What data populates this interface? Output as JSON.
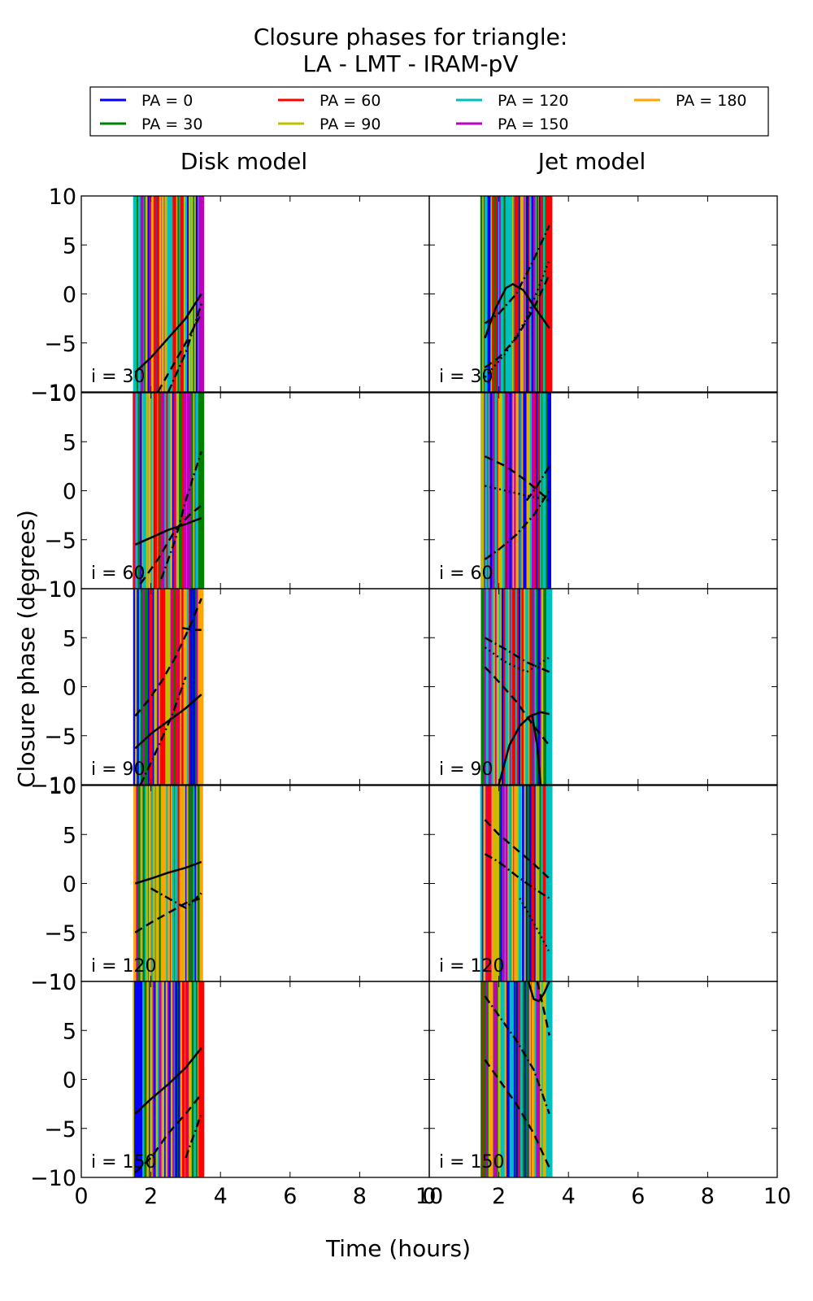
{
  "chart_data": {
    "type": "line",
    "title_line1": "Closure phases for triangle:",
    "title_line2": "LA - LMT - IRAM-pV",
    "xlabel": "Time (hours)",
    "ylabel": "Closure phase (degrees)",
    "xlim": [
      0,
      10
    ],
    "ylim": [
      -10,
      10
    ],
    "xticks": [
      0,
      2,
      4,
      6,
      8,
      10
    ],
    "yticks": [
      -10,
      -5,
      0,
      5,
      10
    ],
    "xticklabels_left": [
      "0",
      "2",
      "4",
      "6",
      "8",
      "10"
    ],
    "xticklabels_right": [
      "0",
      "2",
      "4",
      "6",
      "8",
      "10"
    ],
    "yticklabels": [
      "−10",
      "−5",
      "0",
      "5",
      "10"
    ],
    "grid": false,
    "legend_position": "top",
    "legend": [
      {
        "label": "PA = 0",
        "color": "#0000ff"
      },
      {
        "label": "PA = 30",
        "color": "#008000"
      },
      {
        "label": "PA = 60",
        "color": "#ff0000"
      },
      {
        "label": "PA = 90",
        "color": "#bfbf00"
      },
      {
        "label": "PA = 120",
        "color": "#00bfbf"
      },
      {
        "label": "PA = 150",
        "color": "#bf00bf"
      },
      {
        "label": "PA = 180",
        "color": "#ffa500"
      }
    ],
    "columns": [
      "Disk model",
      "Jet model"
    ],
    "rows": [
      "i = 30",
      "i = 60",
      "i = 90",
      "i = 120",
      "i = 150"
    ],
    "time_range": [
      1.55,
      3.45
    ],
    "panels": [
      {
        "row": 0,
        "col": 0,
        "curves": [
          {
            "style": "solid",
            "x": [
              1.55,
              2.0,
              2.5,
              3.0,
              3.45
            ],
            "y": [
              -8,
              -6.5,
              -4.5,
              -2.5,
              0
            ]
          },
          {
            "style": "dashed",
            "x": [
              2.2,
              2.6,
              3.0,
              3.45
            ],
            "y": [
              -10,
              -7.5,
              -5,
              -2
            ]
          },
          {
            "style": "dashdot",
            "x": [
              2.5,
              3.0,
              3.45
            ],
            "y": [
              -10,
              -6,
              -1
            ]
          }
        ]
      },
      {
        "row": 0,
        "col": 1,
        "curves": [
          {
            "style": "solid",
            "x": [
              1.6,
              1.9,
              2.2,
              2.4,
              2.7,
              3.0,
              3.45
            ],
            "y": [
              -4.5,
              -1.5,
              0.6,
              1.0,
              0.4,
              -1.2,
              -3.5
            ]
          },
          {
            "style": "dashed",
            "x": [
              1.6,
              2.0,
              2.5,
              3.0,
              3.45
            ],
            "y": [
              -7.5,
              -6.5,
              -4.5,
              -1.5,
              2
            ]
          },
          {
            "style": "dashdot",
            "x": [
              1.6,
              2.0,
              2.5,
              3.0,
              3.45
            ],
            "y": [
              -3,
              -2,
              0,
              3.5,
              7
            ]
          },
          {
            "style": "dotted",
            "x": [
              1.6,
              2.2,
              2.8,
              3.45
            ],
            "y": [
              -8.5,
              -6,
              -2.5,
              3.5
            ]
          }
        ]
      },
      {
        "row": 1,
        "col": 0,
        "curves": [
          {
            "style": "solid",
            "x": [
              1.55,
              2.0,
              2.5,
              3.0,
              3.45
            ],
            "y": [
              -5.5,
              -4.8,
              -4.0,
              -3.4,
              -2.8
            ]
          },
          {
            "style": "dashed",
            "x": [
              1.7,
              2.2,
              2.7,
              3.1,
              3.45
            ],
            "y": [
              -9.5,
              -7,
              -4,
              -2.5,
              -1.5
            ]
          },
          {
            "style": "dashdot",
            "x": [
              2.3,
              2.7,
              3.0,
              3.45
            ],
            "y": [
              -9,
              -5,
              -1,
              4
            ]
          }
        ]
      },
      {
        "row": 1,
        "col": 1,
        "curves": [
          {
            "style": "dashdot",
            "x": [
              1.6,
              2.0,
              2.5,
              3.0,
              3.45
            ],
            "y": [
              -7,
              -6,
              -4.5,
              -2.5,
              0
            ]
          },
          {
            "style": "dashed",
            "x": [
              1.6,
              2.2,
              2.8,
              3.45
            ],
            "y": [
              3.5,
              2.5,
              1,
              -1
            ]
          },
          {
            "style": "dotted",
            "x": [
              1.6,
              2.2,
              2.8,
              3.45
            ],
            "y": [
              0.5,
              0,
              -0.5,
              -1
            ]
          },
          {
            "style": "dashdot",
            "x": [
              2.8,
              3.1,
              3.45
            ],
            "y": [
              -1,
              0.5,
              2.5
            ]
          }
        ]
      },
      {
        "row": 2,
        "col": 0,
        "curves": [
          {
            "style": "solid",
            "x": [
              1.55,
              2.0,
              2.5,
              3.0,
              3.45
            ],
            "y": [
              -6.3,
              -4.8,
              -3.5,
              -2.2,
              -0.8
            ]
          },
          {
            "style": "dashed",
            "x": [
              1.55,
              1.9,
              2.3,
              2.7,
              3.1,
              3.45
            ],
            "y": [
              -3,
              -1.5,
              0.5,
              3,
              6,
              9
            ]
          },
          {
            "style": "dashdot",
            "x": [
              1.7,
              2.1,
              2.6,
              3.0
            ],
            "y": [
              -10,
              -7,
              -3,
              1
            ]
          },
          {
            "style": "dashed",
            "x": [
              2.9,
              3.2,
              3.45
            ],
            "y": [
              6,
              5.8,
              5.8
            ]
          }
        ]
      },
      {
        "row": 2,
        "col": 1,
        "curves": [
          {
            "style": "solid",
            "x": [
              2.0,
              2.3,
              2.6,
              2.9,
              3.2,
              3.45
            ],
            "y": [
              -10,
              -6,
              -4,
              -3,
              -2.6,
              -2.8
            ]
          },
          {
            "style": "solid",
            "x": [
              2.95,
              3.1,
              3.2
            ],
            "y": [
              -2.8,
              -6,
              -10
            ]
          },
          {
            "style": "dashed",
            "x": [
              1.6,
              2.0,
              2.5,
              3.0,
              3.45
            ],
            "y": [
              2,
              0.5,
              -1.5,
              -4,
              -6
            ]
          },
          {
            "style": "dashdot",
            "x": [
              1.6,
              2.2,
              2.8,
              3.45
            ],
            "y": [
              5,
              3.8,
              2.5,
              1.5
            ]
          },
          {
            "style": "dotted",
            "x": [
              1.6,
              2.2,
              2.8,
              3.45
            ],
            "y": [
              4,
              2.5,
              1.5,
              3
            ]
          }
        ]
      },
      {
        "row": 3,
        "col": 0,
        "curves": [
          {
            "style": "solid",
            "x": [
              1.55,
              2.0,
              2.5,
              3.0,
              3.45
            ],
            "y": [
              0,
              0.5,
              1.1,
              1.6,
              2.2
            ]
          },
          {
            "style": "dashed",
            "x": [
              1.55,
              2.0,
              2.5,
              3.0,
              3.45
            ],
            "y": [
              -5,
              -4,
              -3,
              -2,
              -1.5
            ]
          },
          {
            "style": "dashdot",
            "x": [
              2.0,
              2.5,
              3.0,
              3.45
            ],
            "y": [
              -0.5,
              -1.5,
              -2.5,
              -1
            ]
          }
        ]
      },
      {
        "row": 3,
        "col": 1,
        "curves": [
          {
            "style": "dashed",
            "x": [
              1.6,
              2.0,
              2.5,
              3.0,
              3.45
            ],
            "y": [
              6.5,
              5,
              3.5,
              2,
              0.5
            ]
          },
          {
            "style": "dashdot",
            "x": [
              1.6,
              2.0,
              2.5,
              3.0,
              3.45
            ],
            "y": [
              3,
              2.2,
              0.8,
              -0.5,
              -1.5
            ]
          },
          {
            "style": "dotted",
            "x": [
              2.6,
              3.0,
              3.45
            ],
            "y": [
              -1.5,
              -4,
              -7
            ]
          }
        ]
      },
      {
        "row": 4,
        "col": 0,
        "curves": [
          {
            "style": "solid",
            "x": [
              1.55,
              2.0,
              2.5,
              3.0,
              3.45
            ],
            "y": [
              -3.5,
              -2,
              -0.5,
              1.2,
              3.2
            ]
          },
          {
            "style": "dashed",
            "x": [
              1.55,
              2.0,
              2.5,
              3.0,
              3.45
            ],
            "y": [
              -9.5,
              -8,
              -5.5,
              -3.5,
              -1.5
            ]
          },
          {
            "style": "dashdot",
            "x": [
              3.0,
              3.2,
              3.45
            ],
            "y": [
              -8,
              -6,
              -3.5
            ]
          }
        ]
      },
      {
        "row": 4,
        "col": 1,
        "curves": [
          {
            "style": "solid",
            "x": [
              2.85,
              3.0,
              3.15,
              3.3,
              3.45
            ],
            "y": [
              10,
              8.2,
              8.0,
              8.8,
              10
            ]
          },
          {
            "style": "dashed",
            "x": [
              3.1,
              3.3,
              3.45
            ],
            "y": [
              10,
              7,
              4.5
            ]
          },
          {
            "style": "dashdot",
            "x": [
              1.6,
              2.0,
              2.5,
              3.0,
              3.45
            ],
            "y": [
              8.5,
              6.5,
              4,
              1,
              -3.5
            ]
          },
          {
            "style": "dashed",
            "x": [
              1.6,
              2.0,
              2.5,
              3.0,
              3.45
            ],
            "y": [
              2,
              0,
              -2.5,
              -5.5,
              -9
            ]
          }
        ]
      }
    ]
  }
}
